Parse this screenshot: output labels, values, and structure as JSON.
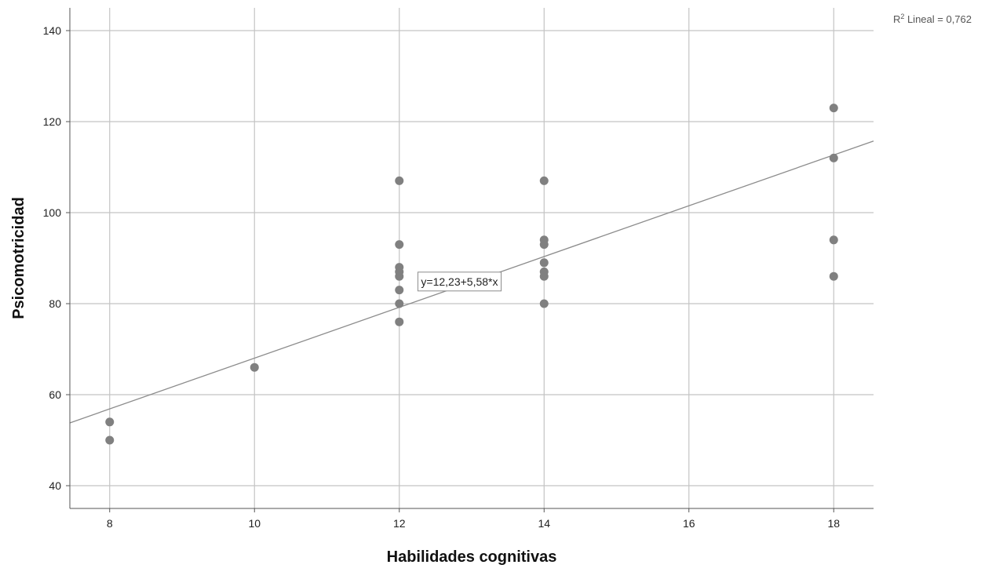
{
  "chart_data": {
    "type": "scatter",
    "title": "",
    "xlabel": "Habilidades cognitivas",
    "ylabel": "Psicomotricidad",
    "xlim": [
      7.45,
      18.55
    ],
    "ylim": [
      35,
      145
    ],
    "xticks": [
      8,
      10,
      12,
      14,
      16,
      18
    ],
    "yticks": [
      40,
      60,
      80,
      100,
      120,
      140
    ],
    "grid": true,
    "point_color": "#808080",
    "line_color": "#8c8c8c",
    "grid_color": "#c4c4c4",
    "series": [
      {
        "points": [
          {
            "x": 8,
            "y": 54
          },
          {
            "x": 8,
            "y": 50
          },
          {
            "x": 10,
            "y": 66
          },
          {
            "x": 12,
            "y": 107
          },
          {
            "x": 12,
            "y": 93
          },
          {
            "x": 12,
            "y": 88
          },
          {
            "x": 12,
            "y": 87
          },
          {
            "x": 12,
            "y": 86
          },
          {
            "x": 12,
            "y": 83
          },
          {
            "x": 12,
            "y": 80
          },
          {
            "x": 12,
            "y": 76
          },
          {
            "x": 14,
            "y": 107
          },
          {
            "x": 14,
            "y": 94
          },
          {
            "x": 14,
            "y": 93
          },
          {
            "x": 14,
            "y": 89
          },
          {
            "x": 14,
            "y": 87
          },
          {
            "x": 14,
            "y": 86
          },
          {
            "x": 14,
            "y": 80
          },
          {
            "x": 18,
            "y": 123
          },
          {
            "x": 18,
            "y": 112
          },
          {
            "x": 18,
            "y": 94
          },
          {
            "x": 18,
            "y": 86
          }
        ]
      }
    ],
    "fit_line": {
      "intercept": 12.23,
      "slope": 5.58,
      "equation_label": "y=12,23+5,58*x",
      "equation_anchor": {
        "x": 12.3,
        "y": 84
      }
    },
    "r2_label": {
      "prefix": "R",
      "superscript": "2",
      "text": " Lineal = 0,762"
    }
  }
}
